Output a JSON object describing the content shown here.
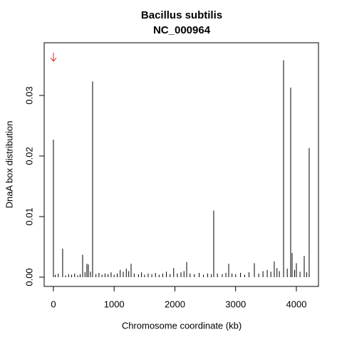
{
  "chart_data": {
    "type": "spike",
    "title": "Bacillus subtilis",
    "subtitle": "NC_000964",
    "x_label": "Chromosome coordinate (kb)",
    "y_label": "DnaA box distribution",
    "color": "#000000",
    "x": [
      0,
      30,
      80,
      152,
      200,
      250,
      300,
      350,
      400,
      440,
      481,
      520,
      551,
      575,
      610,
      645,
      700,
      750,
      800,
      850,
      900,
      950,
      1000,
      1050,
      1100,
      1150,
      1200,
      1240,
      1279,
      1330,
      1400,
      1450,
      1500,
      1560,
      1620,
      1680,
      1740,
      1800,
      1860,
      1920,
      1980,
      2040,
      2100,
      2150,
      2194,
      2250,
      2320,
      2400,
      2470,
      2540,
      2600,
      2639,
      2700,
      2780,
      2840,
      2886,
      2940,
      3000,
      3080,
      3150,
      3220,
      3308,
      3380,
      3450,
      3520,
      3580,
      3636,
      3680,
      3720,
      3789,
      3850,
      3906,
      3930,
      3970,
      4000,
      4060,
      4129,
      4170,
      4211
    ],
    "values": [
      0.0227,
      0.0004,
      0.0006,
      0.0047,
      0.0003,
      0.0005,
      0.0004,
      0.0006,
      0.0003,
      0.0005,
      0.0037,
      0.0008,
      0.0022,
      0.0021,
      0.0009,
      0.0323,
      0.0005,
      0.0007,
      0.0004,
      0.0006,
      0.0005,
      0.0008,
      0.0004,
      0.0006,
      0.0012,
      0.0009,
      0.0014,
      0.001,
      0.0022,
      0.0006,
      0.0005,
      0.0008,
      0.0004,
      0.0006,
      0.0005,
      0.0007,
      0.0004,
      0.0006,
      0.0009,
      0.0005,
      0.0015,
      0.0006,
      0.0008,
      0.001,
      0.0025,
      0.0006,
      0.0005,
      0.0007,
      0.0004,
      0.0006,
      0.0005,
      0.011,
      0.0006,
      0.0005,
      0.0007,
      0.0022,
      0.0006,
      0.0005,
      0.0007,
      0.0004,
      0.0008,
      0.0023,
      0.0006,
      0.001,
      0.0012,
      0.0009,
      0.0026,
      0.0015,
      0.001,
      0.0358,
      0.0014,
      0.0313,
      0.004,
      0.0012,
      0.0023,
      0.0009,
      0.0035,
      0.0008,
      0.0213
    ],
    "xlim": [
      -152,
      4364
    ],
    "ylim": [
      -0.00153,
      0.0387
    ],
    "xticks": [
      0,
      1000,
      2000,
      3000,
      4000
    ],
    "yticks": [
      {
        "value": 0,
        "label": "0.00"
      },
      {
        "value": 0.01,
        "label": "0.01"
      },
      {
        "value": 0.02,
        "label": "0.02"
      },
      {
        "value": 0.03,
        "label": "0.03"
      }
    ]
  }
}
